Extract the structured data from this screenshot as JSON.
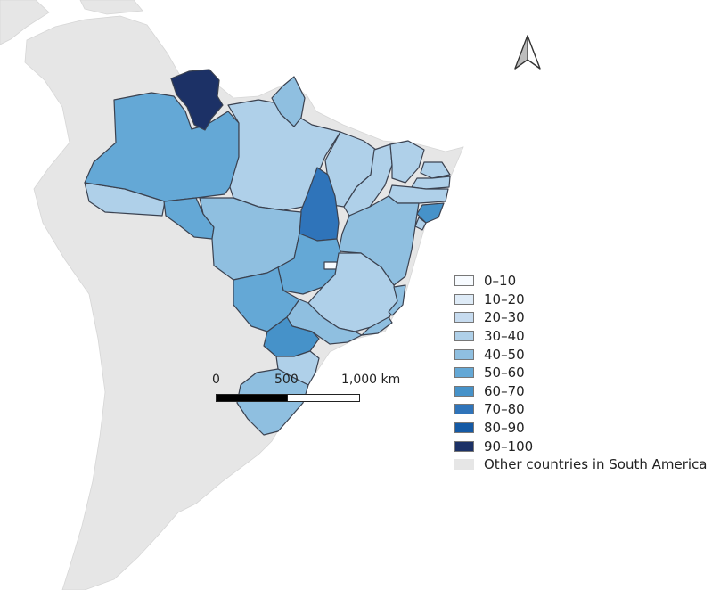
{
  "map": {
    "colors": {
      "ocean": "#ffffff",
      "other_countries": "#e6e6e6",
      "state_border": "#3b4250"
    },
    "north_arrow_icon": "north-arrow-icon",
    "classes": [
      {
        "label": "0–10",
        "color": "#f7fbff"
      },
      {
        "label": "10–20",
        "color": "#deebf7"
      },
      {
        "label": "20–30",
        "color": "#c6dbef"
      },
      {
        "label": "30–40",
        "color": "#afd0e9"
      },
      {
        "label": "40–50",
        "color": "#8fbfe0"
      },
      {
        "label": "50–60",
        "color": "#64a8d6"
      },
      {
        "label": "60–70",
        "color": "#4692c9"
      },
      {
        "label": "70–80",
        "color": "#2f74ba"
      },
      {
        "label": "80–90",
        "color": "#155aa5"
      },
      {
        "label": "90–100",
        "color": "#1c3166"
      }
    ],
    "other_label": "Other countries in South America",
    "scale": {
      "labels": [
        "0",
        "500",
        "1,000 km"
      ]
    },
    "states": [
      {
        "id": "AC",
        "class": 3
      },
      {
        "id": "AM",
        "class": 5
      },
      {
        "id": "RR",
        "class": 9
      },
      {
        "id": "PA",
        "class": 3
      },
      {
        "id": "AP",
        "class": 4
      },
      {
        "id": "MA",
        "class": 3
      },
      {
        "id": "PI",
        "class": 3
      },
      {
        "id": "CE",
        "class": 3
      },
      {
        "id": "RN",
        "class": 3
      },
      {
        "id": "PB",
        "class": 3
      },
      {
        "id": "PE",
        "class": 3
      },
      {
        "id": "AL",
        "class": 6
      },
      {
        "id": "SE",
        "class": 3
      },
      {
        "id": "BA",
        "class": 4
      },
      {
        "id": "TO",
        "class": 7
      },
      {
        "id": "RO",
        "class": 5
      },
      {
        "id": "MT",
        "class": 4
      },
      {
        "id": "GO",
        "class": 5
      },
      {
        "id": "DF",
        "class": 0
      },
      {
        "id": "MS",
        "class": 5
      },
      {
        "id": "MG",
        "class": 3
      },
      {
        "id": "ES",
        "class": 4
      },
      {
        "id": "RJ",
        "class": 4
      },
      {
        "id": "SP",
        "class": 4
      },
      {
        "id": "PR",
        "class": 6
      },
      {
        "id": "SC",
        "class": 3
      },
      {
        "id": "RS",
        "class": 4
      }
    ]
  }
}
